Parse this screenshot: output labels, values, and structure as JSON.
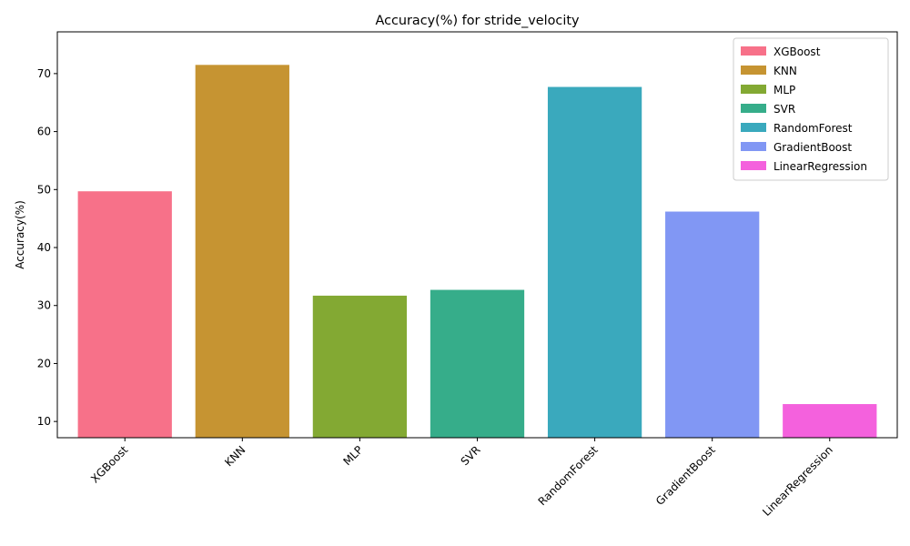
{
  "chart_data": {
    "type": "bar",
    "title": "Accuracy(%) for stride_velocity",
    "xlabel": "",
    "ylabel": "Accuracy(%)",
    "ylim": [
      7.2,
      77.2
    ],
    "yticks": [
      10,
      20,
      30,
      40,
      50,
      60,
      70
    ],
    "categories": [
      "XGBoost",
      "KNN",
      "MLP",
      "SVR",
      "RandomForest",
      "GradientBoost",
      "LinearRegression"
    ],
    "values": [
      49.7,
      71.5,
      31.7,
      32.7,
      67.7,
      46.2,
      13.0
    ],
    "colors": [
      "#f77189",
      "#c69432",
      "#83a933",
      "#36ad8a",
      "#3aa9bd",
      "#8197f4",
      "#f461dd"
    ],
    "legend": {
      "position": "top-right",
      "entries": [
        "XGBoost",
        "KNN",
        "MLP",
        "SVR",
        "RandomForest",
        "GradientBoost",
        "LinearRegression"
      ]
    },
    "grid": false
  }
}
